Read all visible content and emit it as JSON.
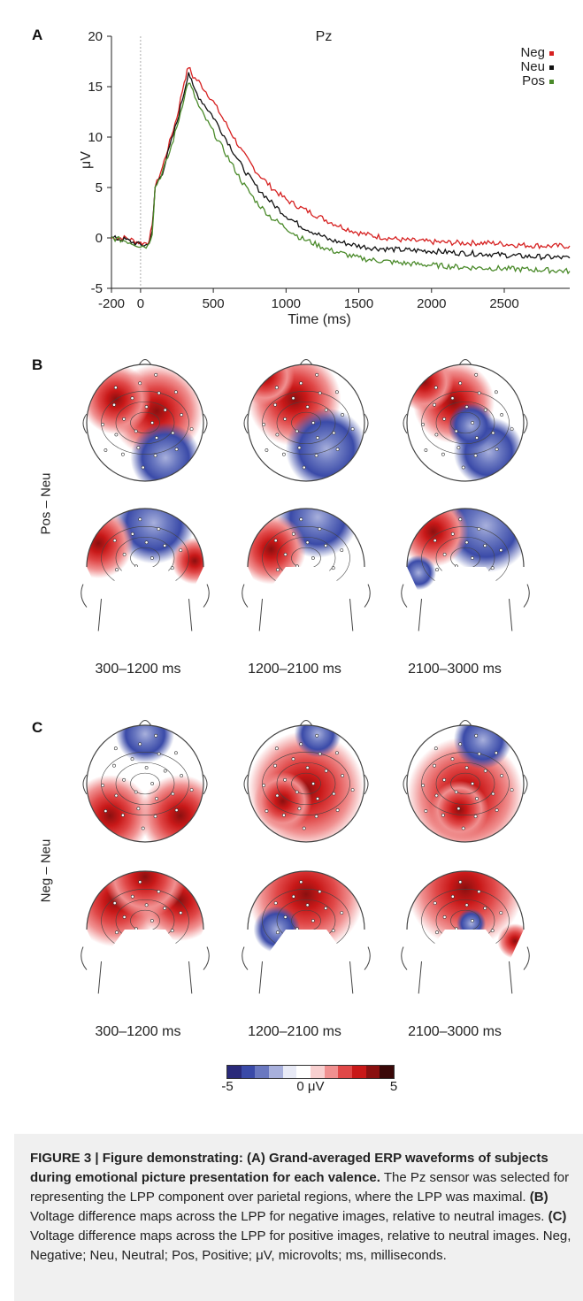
{
  "panels": {
    "a": "A",
    "b": "B",
    "c": "C"
  },
  "chart_data": {
    "type": "line",
    "title": "Pz",
    "xlabel": "Time (ms)",
    "ylabel": "μV",
    "xlim": [
      -200,
      2950
    ],
    "ylim": [
      -5,
      20
    ],
    "xticks": [
      -200,
      0,
      500,
      1000,
      1500,
      2000,
      2500
    ],
    "yticks": [
      -5,
      0,
      5,
      10,
      15,
      20
    ],
    "legend_position": "top-right",
    "series": [
      {
        "name": "Neg",
        "color": "#d62020",
        "x": [
          -200,
          -100,
          0,
          50,
          80,
          100,
          150,
          200,
          250,
          300,
          330,
          360,
          400,
          500,
          600,
          700,
          800,
          900,
          1000,
          1100,
          1200,
          1300,
          1400,
          1500,
          1600,
          1800,
          2000,
          2200,
          2400,
          2600,
          2800,
          2950
        ],
        "y": [
          0,
          0,
          -0.5,
          -0.5,
          1,
          5,
          7,
          9.5,
          12,
          15.5,
          17,
          16,
          15.5,
          13.5,
          11,
          8.5,
          6.5,
          5,
          3.8,
          3,
          2.3,
          1.6,
          1,
          0.5,
          0.2,
          -0.2,
          -0.4,
          -0.5,
          -0.5,
          -0.7,
          -0.8,
          -0.8
        ]
      },
      {
        "name": "Neu",
        "color": "#111111",
        "x": [
          -200,
          -100,
          0,
          50,
          80,
          100,
          150,
          200,
          250,
          300,
          330,
          360,
          400,
          500,
          600,
          700,
          800,
          900,
          1000,
          1100,
          1200,
          1300,
          1400,
          1500,
          1600,
          1800,
          2000,
          2200,
          2400,
          2600,
          2800,
          2950
        ],
        "y": [
          0,
          -0.2,
          -0.7,
          -0.7,
          0.5,
          5,
          6.5,
          9,
          11.5,
          14.5,
          16.5,
          15,
          14,
          12,
          9.5,
          7,
          5,
          3.5,
          2.2,
          1.2,
          0.5,
          -0.2,
          -0.5,
          -0.8,
          -1,
          -1.2,
          -1.3,
          -1.5,
          -1.6,
          -1.8,
          -1.9,
          -2
        ]
      },
      {
        "name": "Pos",
        "color": "#4a8a2a",
        "x": [
          -200,
          -100,
          0,
          50,
          80,
          100,
          150,
          200,
          250,
          300,
          330,
          360,
          400,
          500,
          600,
          700,
          800,
          900,
          1000,
          1100,
          1200,
          1300,
          1400,
          1500,
          1600,
          1800,
          2000,
          2200,
          2400,
          2600,
          2800,
          2950
        ],
        "y": [
          0,
          -0.3,
          -0.8,
          -0.8,
          0.5,
          5,
          6.5,
          8.5,
          11,
          14,
          15.5,
          14.5,
          13,
          10.5,
          8,
          5.5,
          3.5,
          2,
          1,
          0,
          -0.6,
          -1.2,
          -1.6,
          -2,
          -2.2,
          -2.5,
          -2.7,
          -2.9,
          -3,
          -3.1,
          -3.2,
          -3.3
        ]
      }
    ]
  },
  "topomaps": {
    "side_labels": [
      "Pos – Neu",
      "Neg – Neu"
    ],
    "time_labels": [
      "300–1200 ms",
      "1200–2100 ms",
      "2100–3000 ms"
    ],
    "colorbar": {
      "min_label": "-5",
      "mid_label": "0 μV",
      "max_label": "5"
    },
    "colorscale": [
      "#2a2a7a",
      "#3a4aa8",
      "#6a78c0",
      "#a8b0dc",
      "#e8eaf6",
      "#ffffff",
      "#f8d0d0",
      "#f09090",
      "#e04848",
      "#c81818",
      "#8a1010",
      "#3a0808"
    ]
  },
  "caption": {
    "heading": "FIGURE 3 | Figure demonstrating: (A) Grand-averaged ERP waveforms of subjects during emotional picture presentation for each valence.",
    "text1": " The Pz sensor was selected for representing the LPP component over parietal regions, where the LPP was maximal. ",
    "b_label": "(B)",
    "text2": " Voltage difference maps across the LPP for negative images, relative to neutral images. ",
    "c_label": "(C)",
    "text3": " Voltage difference maps across the LPP for positive images, relative to neutral images. Neg, Negative; Neu, Neutral; Pos, Positive; μV, microvolts; ms, milliseconds."
  }
}
